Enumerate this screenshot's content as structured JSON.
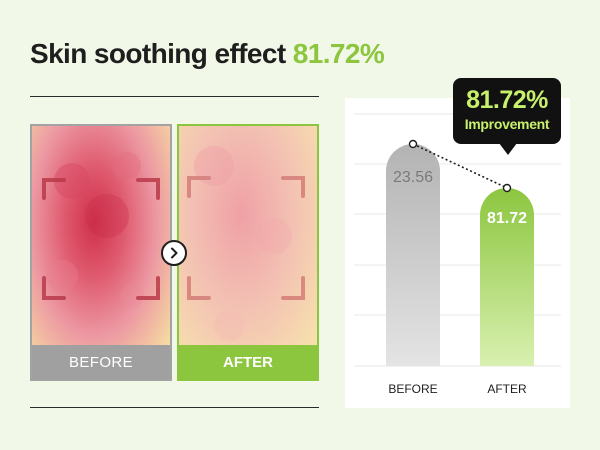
{
  "headline": {
    "text": "Skin soothing effect",
    "value": "81.72%"
  },
  "photos": {
    "before_label": "BEFORE",
    "after_label": "AFTER"
  },
  "callout": {
    "value": "81.72%",
    "label": "Improvement"
  },
  "chart_data": {
    "type": "bar",
    "categories": [
      "BEFORE",
      "AFTER"
    ],
    "values": [
      23.56,
      81.72
    ],
    "value_labels": [
      "23.56",
      "81.72"
    ],
    "title": "",
    "xlabel": "",
    "ylabel": "",
    "grid": true,
    "colors": {
      "before_top": "#b3b3b3",
      "before_bottom": "#e4e4e4",
      "after_top": "#8cc63f",
      "after_bottom": "#d9f0b0"
    }
  }
}
